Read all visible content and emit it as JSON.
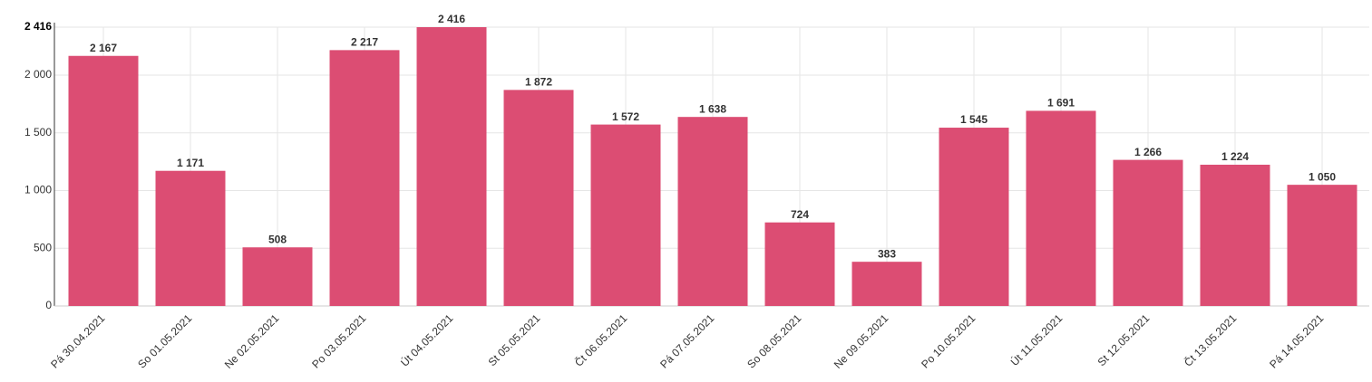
{
  "chart_data": {
    "type": "bar",
    "categories": [
      "Pá 30.04.2021",
      "So 01.05.2021",
      "Ne 02.05.2021",
      "Po 03.05.2021",
      "Út 04.05.2021",
      "St 05.05.2021",
      "Čt 06.05.2021",
      "Pá 07.05.2021",
      "So 08.05.2021",
      "Ne 09.05.2021",
      "Po 10.05.2021",
      "Út 11.05.2021",
      "St 12.05.2021",
      "Čt 13.05.2021",
      "Pá 14.05.2021"
    ],
    "values": [
      2167,
      1171,
      508,
      2217,
      2416,
      1872,
      1572,
      1638,
      724,
      383,
      1545,
      1691,
      1266,
      1224,
      1050
    ],
    "value_labels": [
      "2 167",
      "1 171",
      "508",
      "2 217",
      "2 416",
      "1 872",
      "1 572",
      "1 638",
      "724",
      "383",
      "1 545",
      "1 691",
      "1 266",
      "1 224",
      "1 050"
    ],
    "color": "#dc4d73",
    "ylim": [
      0,
      2416
    ],
    "yticks": [
      0,
      500,
      {
        "value": 1000,
        "label": "1 000"
      },
      {
        "value": 1500,
        "label": "1 500"
      },
      {
        "value": 2000,
        "label": "2 000"
      },
      {
        "value": 2416,
        "label": "2 416"
      }
    ],
    "grid": true
  }
}
